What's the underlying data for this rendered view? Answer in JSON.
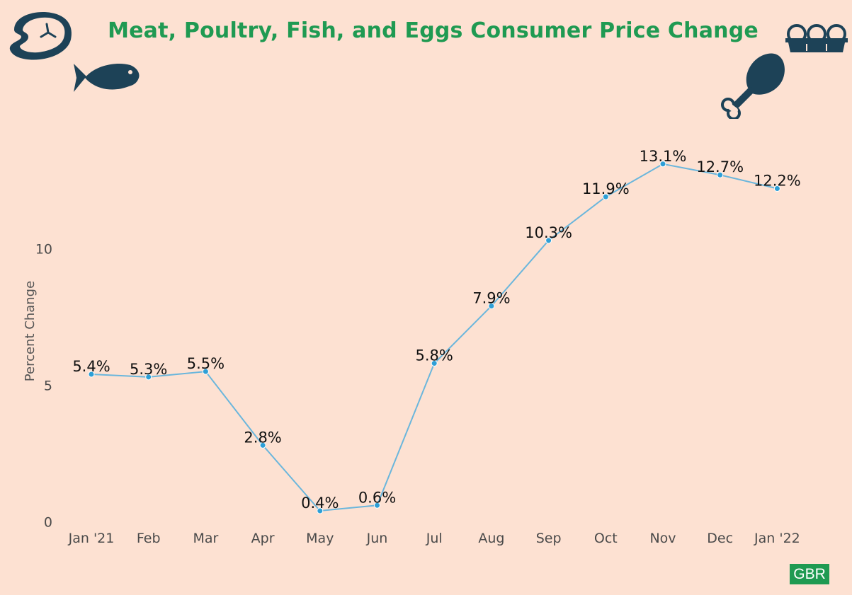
{
  "title": "Meat, Poultry, Fish, and Eggs Consumer Price Change",
  "badge": "GBR",
  "icons": [
    "steak-icon",
    "fish-icon",
    "egg-carton-icon",
    "chicken-leg-icon"
  ],
  "colors": {
    "background": "#fde1d2",
    "title": "#1f9a52",
    "line": "#6ab6dc",
    "marker": "#2e9fd6",
    "icon": "#1d4257",
    "badge": "#1f9a52"
  },
  "chart_data": {
    "type": "line",
    "title": "Meat, Poultry, Fish, and Eggs Consumer Price Change",
    "xlabel": "",
    "ylabel": "Percent Change",
    "categories": [
      "Jan '21",
      "Feb",
      "Mar",
      "Apr",
      "May",
      "Jun",
      "Jul",
      "Aug",
      "Sep",
      "Oct",
      "Nov",
      "Dec",
      "Jan '22"
    ],
    "values": [
      5.4,
      5.3,
      5.5,
      2.8,
      0.4,
      0.6,
      5.8,
      7.9,
      10.3,
      11.9,
      13.1,
      12.7,
      12.2
    ],
    "labels": [
      "5.4%",
      "5.3%",
      "5.5%",
      "2.8%",
      "0.4%",
      "0.6%",
      "5.8%",
      "7.9%",
      "10.3%",
      "11.9%",
      "13.1%",
      "12.7%",
      "12.2%"
    ],
    "yticks": [
      0,
      5,
      10
    ],
    "ylim": [
      0.4,
      13.1
    ],
    "grid": false,
    "legend": "none"
  }
}
